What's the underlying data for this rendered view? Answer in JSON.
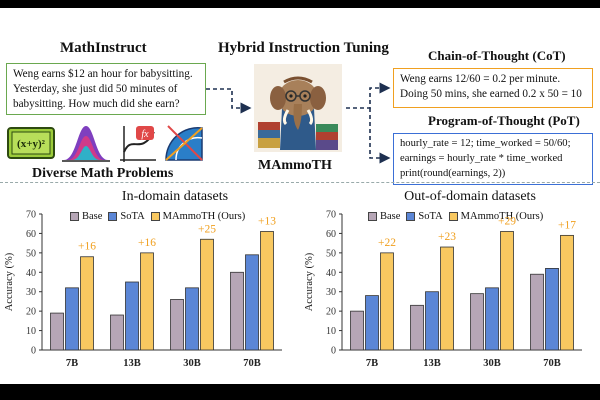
{
  "header": {
    "mathinstruct_title": "MathInstruct",
    "center_title": "Hybrid Instruction Tuning",
    "cot_title": "Chain-of-Thought (CoT)",
    "pot_title": "Program-of-Thought (PoT)",
    "model_name": "MAmmoTH",
    "diverse_label": "Diverse Math Problems"
  },
  "problem": {
    "lines": [
      "Weng earns $12 an hour for babysitting.",
      "Yesterday, she just did 50 minutes of",
      "babysitting. How much did she earn?"
    ]
  },
  "cot": {
    "lines": [
      "Weng earns 12/60 = 0.2 per minute.",
      "Doing 50 mins, she earned 0.2 x 50 = 10"
    ]
  },
  "pot": {
    "lines": [
      "hourly_rate = 12; time_worked = 50/60;",
      "earnings = hourly_rate * time_worked",
      "print(round(earnings, 2))"
    ]
  },
  "icons": [
    "formula-board-icon",
    "bell-curve-icon",
    "fx-graph-icon",
    "protractor-icon",
    "mammoth-mascot-icon"
  ],
  "colors": {
    "base": "#b6a6b6",
    "sota": "#5b86d6",
    "mammoth": "#f8c860",
    "gain": "#f0a020",
    "mi_border": "#6aa84f",
    "pot_border": "#3b6fd6"
  },
  "chart_data": [
    {
      "type": "bar",
      "title": "In-domain datasets",
      "ylabel": "Accuracy (%)",
      "categories": [
        "7B",
        "13B",
        "30B",
        "70B"
      ],
      "ylim": [
        0,
        70
      ],
      "yticks": [
        0,
        10,
        20,
        30,
        40,
        50,
        60,
        70
      ],
      "series": [
        {
          "name": "Base",
          "values": [
            19,
            18,
            26,
            40
          ]
        },
        {
          "name": "SoTA",
          "values": [
            32,
            35,
            32,
            49
          ]
        },
        {
          "name": "MAmmoTH (Ours)",
          "values": [
            48,
            50,
            57,
            61
          ]
        }
      ],
      "annotations": [
        "+16",
        "+16",
        "+25",
        "+13"
      ],
      "legend_position": "top"
    },
    {
      "type": "bar",
      "title": "Out-of-domain datasets",
      "ylabel": "Accuracy (%)",
      "categories": [
        "7B",
        "13B",
        "30B",
        "70B"
      ],
      "ylim": [
        0,
        70
      ],
      "yticks": [
        0,
        10,
        20,
        30,
        40,
        50,
        60,
        70
      ],
      "series": [
        {
          "name": "Base",
          "values": [
            20,
            23,
            29,
            39
          ]
        },
        {
          "name": "SoTA",
          "values": [
            28,
            30,
            32,
            42
          ]
        },
        {
          "name": "MAmmoTH (Ours)",
          "values": [
            50,
            53,
            61,
            59
          ]
        }
      ],
      "annotations": [
        "+22",
        "+23",
        "+29",
        "+17"
      ],
      "legend_position": "top"
    }
  ]
}
